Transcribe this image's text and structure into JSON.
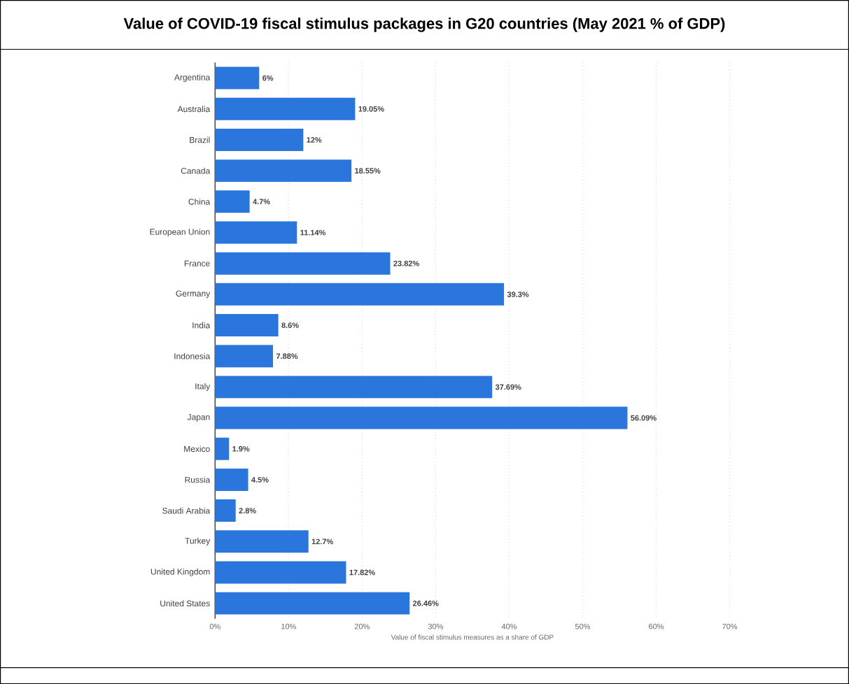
{
  "chart_data": {
    "type": "bar",
    "orientation": "horizontal",
    "title": "Value of COVID-19 fiscal stimulus packages in G20 countries (May 2021 % of GDP)",
    "xlabel": "Value of fiscal stimulus measures as a share of GDP",
    "categories": [
      "Argentina",
      "Australia",
      "Brazil",
      "Canada",
      "China",
      "European Union",
      "France",
      "Germany",
      "India",
      "Indonesia",
      "Italy",
      "Japan",
      "Mexico",
      "Russia",
      "Saudi Arabia",
      "Turkey",
      "United Kingdom",
      "United States"
    ],
    "values": [
      6,
      19.05,
      12,
      18.55,
      4.7,
      11.14,
      23.82,
      39.3,
      8.6,
      7.88,
      37.69,
      56.09,
      1.9,
      4.5,
      2.8,
      12.7,
      17.82,
      26.46
    ],
    "value_labels": [
      "6%",
      "19.05%",
      "12%",
      "18.55%",
      "4.7%",
      "11.14%",
      "23.82%",
      "39.3%",
      "8.6%",
      "7.88%",
      "37.69%",
      "56.09%",
      "1.9%",
      "4.5%",
      "2.8%",
      "12.7%",
      "17.82%",
      "26.46%"
    ],
    "color": "#2a76dd",
    "xlim": [
      0,
      70
    ],
    "xticks": [
      {
        "value": 0,
        "label": "0%"
      },
      {
        "value": 10,
        "label": "10%"
      },
      {
        "value": 20,
        "label": "20%"
      },
      {
        "value": 30,
        "label": "30%"
      },
      {
        "value": 40,
        "label": "40%"
      },
      {
        "value": 50,
        "label": "50%"
      },
      {
        "value": 60,
        "label": "60%"
      },
      {
        "value": 70,
        "label": "70%"
      }
    ],
    "grid": "x"
  }
}
